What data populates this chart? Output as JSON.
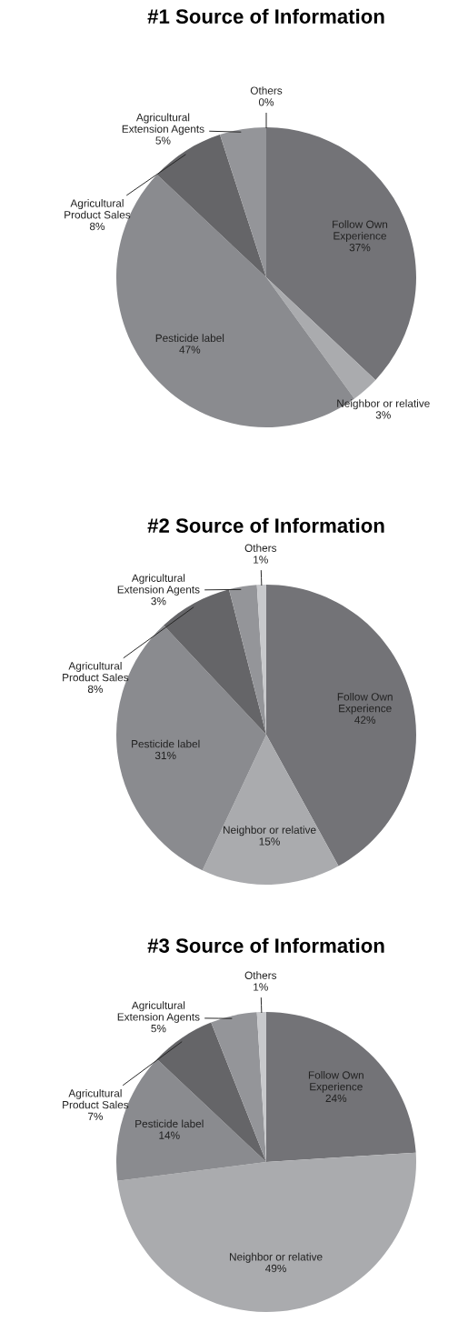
{
  "chart_data": [
    {
      "type": "pie",
      "title": "#1 Source of Information",
      "categories": [
        "Follow Own Experience",
        "Neighbor or relative",
        "Pesticide label",
        "Agricultural Product Sales",
        "Agricultural Extension Agents",
        "Others"
      ],
      "values": [
        37,
        3,
        47,
        8,
        5,
        0
      ],
      "value_labels": [
        "37%",
        "3%",
        "47%",
        "8%",
        "5%",
        "0%"
      ],
      "colors": [
        "#737377",
        "#aaabae",
        "#8a8b8f",
        "#656568",
        "#949599",
        "#c8c9cc"
      ]
    },
    {
      "type": "pie",
      "title": "#2 Source of Information",
      "categories": [
        "Follow Own Experience",
        "Neighbor or relative",
        "Pesticide label",
        "Agricultural Product Sales",
        "Agricultural Extension Agents",
        "Others"
      ],
      "values": [
        42,
        15,
        31,
        8,
        3,
        1
      ],
      "value_labels": [
        "42%",
        "15%",
        "31%",
        "8%",
        "3%",
        "1%"
      ],
      "colors": [
        "#737377",
        "#aaabae",
        "#8a8b8f",
        "#656568",
        "#949599",
        "#c8c9cc"
      ]
    },
    {
      "type": "pie",
      "title": "#3 Source of Information",
      "categories": [
        "Follow Own Experience",
        "Neighbor or relative",
        "Pesticide label",
        "Agricultural Product Sales",
        "Agricultural Extension Agents",
        "Others"
      ],
      "values": [
        24,
        49,
        14,
        7,
        5,
        1
      ],
      "value_labels": [
        "24%",
        "49%",
        "14%",
        "7%",
        "5%",
        "1%"
      ],
      "colors": [
        "#737377",
        "#aaabae",
        "#8a8b8f",
        "#656568",
        "#949599",
        "#c8c9cc"
      ]
    }
  ]
}
